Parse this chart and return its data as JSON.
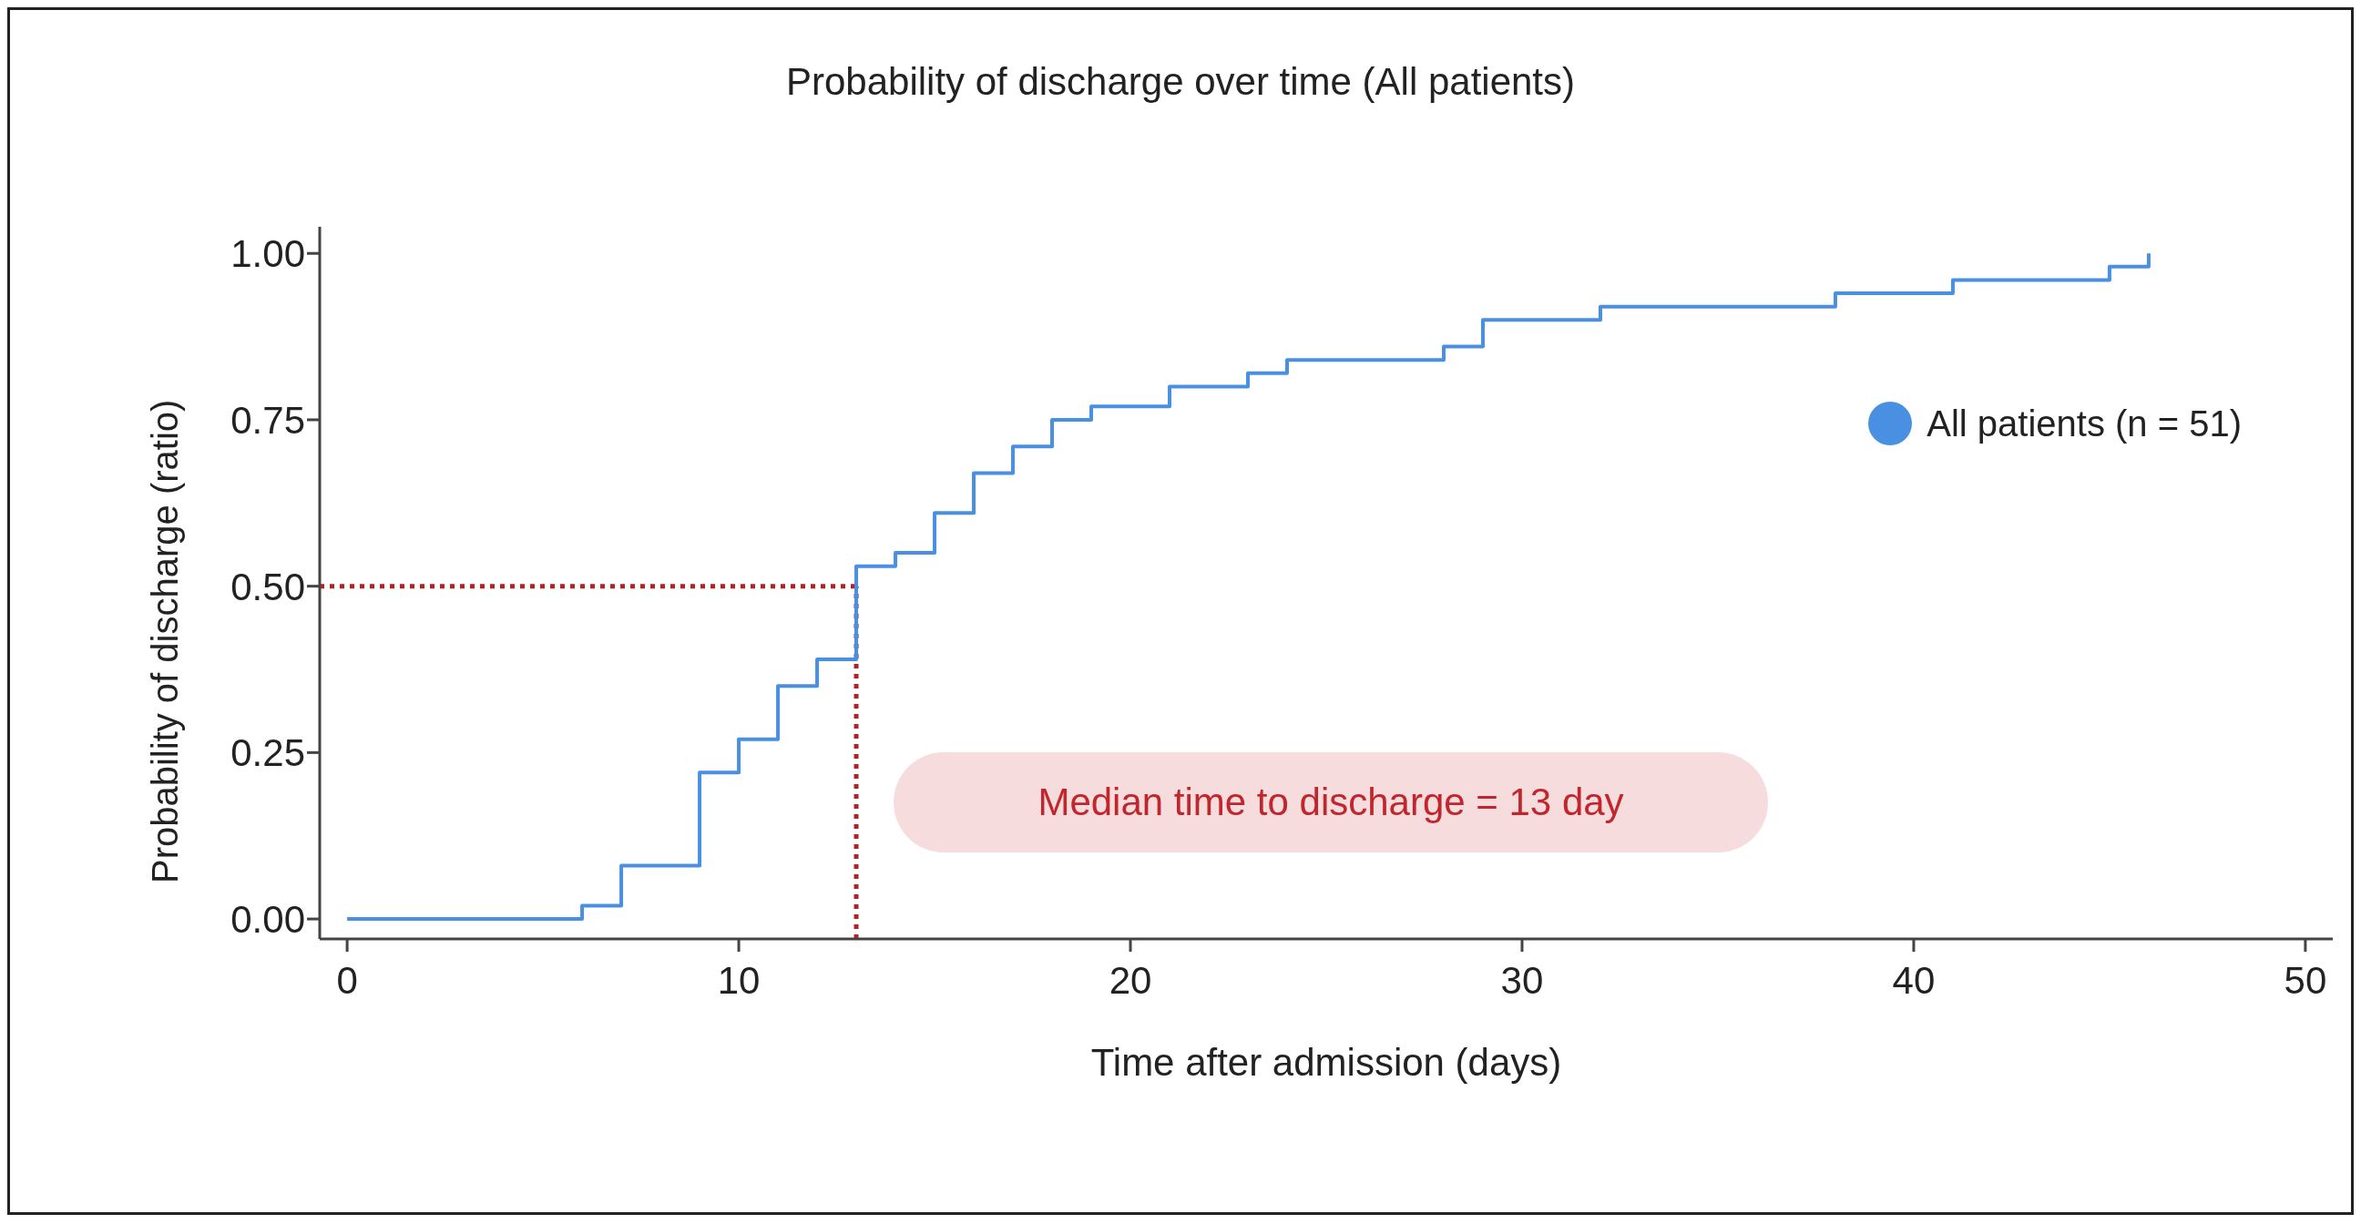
{
  "chart_data": {
    "type": "step",
    "title": "Probability of discharge over time (All patients)",
    "xlabel": "Time after admission (days)",
    "ylabel": "Probability of discharge (ratio)",
    "x": [
      0,
      6,
      7,
      9,
      10,
      11,
      12,
      13,
      14,
      15,
      16,
      17,
      18,
      19,
      21,
      23,
      24,
      28,
      29,
      32,
      38,
      41,
      45,
      46
    ],
    "series": [
      {
        "name": "All patients (n = 51)",
        "color": "#4a90e2",
        "values": [
          0,
          0.02,
          0.08,
          0.22,
          0.27,
          0.35,
          0.39,
          0.53,
          0.55,
          0.61,
          0.67,
          0.71,
          0.75,
          0.77,
          0.8,
          0.82,
          0.84,
          0.86,
          0.9,
          0.92,
          0.94,
          0.96,
          0.98,
          1.0
        ]
      }
    ],
    "xlim": [
      -0.7,
      50.7
    ],
    "xticks": [
      0,
      10,
      20,
      30,
      40,
      50
    ],
    "ylim": [
      -0.03,
      1.04
    ],
    "yticks": [
      {
        "value": 0,
        "label": "0.00"
      },
      {
        "value": 0.25,
        "label": "0.25"
      },
      {
        "value": 0.5,
        "label": "0.50"
      },
      {
        "value": 0.75,
        "label": "0.75"
      },
      {
        "value": 1,
        "label": "1.00"
      }
    ],
    "ref_lines": [
      {
        "axis": "y",
        "value": 0.5,
        "color": "#b22222",
        "line_style": "dotted"
      },
      {
        "axis": "x",
        "value": 13,
        "color": "#b22222",
        "line_style": "dotted"
      }
    ],
    "annotations": [
      "Median time to discharge = 13 day"
    ],
    "legend": "right",
    "marker": "none",
    "line_style": "solid",
    "grid": false
  }
}
